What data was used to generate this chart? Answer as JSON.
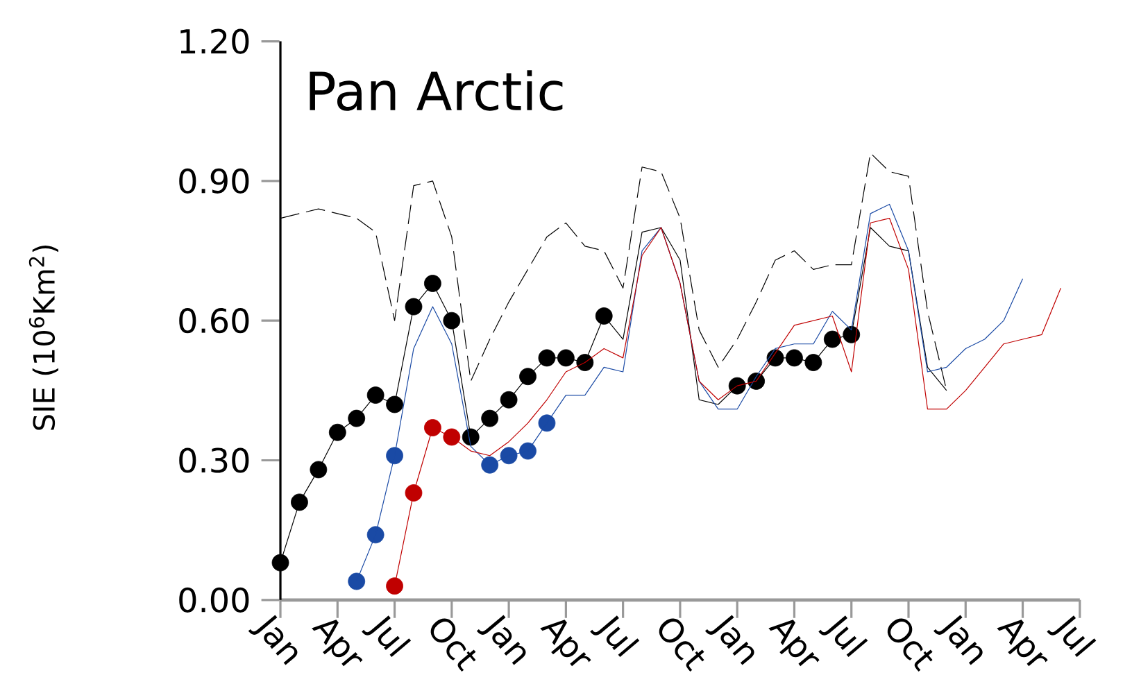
{
  "chart_data": {
    "type": "line",
    "title": "Pan Arctic",
    "ylabel": "SIE (10$^{6}$Km$^{2}$)",
    "categories": [
      "Jan",
      null,
      null,
      "Apr",
      null,
      null,
      "Jul",
      null,
      null,
      "Oct",
      null,
      null,
      "Jan",
      null,
      null,
      "Apr",
      null,
      null,
      "Jul",
      null,
      null,
      "Oct",
      null,
      null,
      "Jan",
      null,
      null,
      "Apr",
      null,
      null,
      "Jul",
      null,
      null,
      "Oct",
      null,
      null,
      "Jan",
      null,
      null,
      "Apr",
      null,
      null,
      "Jul"
    ],
    "ylim": [
      0,
      1.2
    ],
    "yticks": [
      {
        "value": 0,
        "label": "0.00"
      },
      {
        "value": 0.3,
        "label": "0.30"
      },
      {
        "value": 0.6,
        "label": "0.60"
      },
      {
        "value": 0.9,
        "label": "0.90"
      },
      {
        "value": 1.2,
        "label": "1.20"
      }
    ],
    "grid": false,
    "legend": false,
    "series": [
      {
        "color": "#000000",
        "line_style": "dashed",
        "marker": "none",
        "values": [
          0.82,
          0.83,
          0.84,
          0.83,
          0.82,
          0.79,
          0.6,
          0.89,
          0.9,
          0.78,
          0.47,
          0.56,
          0.64,
          0.71,
          0.78,
          0.81,
          0.76,
          0.75,
          0.67,
          0.93,
          0.92,
          0.82,
          0.58,
          0.5,
          0.56,
          0.64,
          0.73,
          0.75,
          0.71,
          0.72,
          0.72,
          0.96,
          0.92,
          0.91,
          0.62,
          0.45,
          null,
          null,
          null,
          null,
          null,
          null,
          null
        ]
      },
      {
        "color": "#000000",
        "line_style": "solid",
        "marker": "none",
        "values": [
          0.08,
          0.21,
          0.28,
          0.36,
          0.39,
          0.44,
          0.42,
          0.63,
          0.68,
          0.6,
          0.35,
          0.39,
          0.43,
          0.48,
          0.52,
          0.52,
          0.51,
          0.61,
          0.56,
          0.79,
          0.8,
          0.73,
          0.43,
          0.42,
          0.46,
          0.47,
          0.52,
          0.52,
          0.51,
          0.56,
          0.57,
          0.8,
          0.76,
          0.75,
          0.5,
          0.45,
          null,
          null,
          null,
          null,
          null,
          null,
          null
        ]
      },
      {
        "color": "#1a4aa5",
        "line_style": "solid",
        "marker": "none",
        "values": [
          null,
          null,
          null,
          null,
          0.04,
          0.14,
          0.31,
          0.54,
          0.63,
          0.55,
          0.33,
          0.29,
          0.31,
          0.32,
          0.38,
          0.44,
          0.44,
          0.5,
          0.49,
          0.75,
          0.8,
          0.68,
          0.47,
          0.41,
          0.41,
          0.48,
          0.54,
          0.55,
          0.55,
          0.62,
          0.58,
          0.83,
          0.85,
          0.75,
          0.49,
          0.5,
          0.54,
          0.56,
          0.6,
          0.69,
          null,
          null,
          null
        ]
      },
      {
        "color": "#c00000",
        "line_style": "solid",
        "marker": "none",
        "values": [
          null,
          null,
          null,
          null,
          null,
          null,
          0.03,
          0.23,
          0.37,
          0.35,
          0.32,
          0.31,
          0.34,
          0.38,
          0.43,
          0.49,
          0.51,
          0.54,
          0.52,
          0.74,
          0.8,
          0.68,
          0.47,
          0.43,
          0.46,
          0.47,
          0.53,
          0.59,
          0.6,
          0.61,
          0.49,
          0.81,
          0.82,
          0.71,
          0.41,
          0.41,
          0.45,
          0.5,
          0.55,
          0.56,
          0.57,
          0.67,
          null
        ]
      },
      {
        "type": "scatter",
        "color": "#000000",
        "marker": "circle",
        "values": [
          0.08,
          0.21,
          0.28,
          0.36,
          0.39,
          0.44,
          0.42,
          0.63,
          0.68,
          0.6,
          0.35,
          0.39,
          0.43,
          0.48,
          0.52,
          0.52,
          0.51,
          0.61,
          null,
          null,
          null,
          null,
          null,
          null,
          0.46,
          0.47,
          0.52,
          0.52,
          0.51,
          0.56,
          0.57,
          null,
          null,
          null,
          null,
          null,
          null,
          null,
          null,
          null,
          null,
          null,
          null
        ]
      },
      {
        "type": "scatter",
        "color": "#1a4aa5",
        "marker": "circle",
        "values": [
          null,
          null,
          null,
          null,
          0.04,
          0.14,
          0.31,
          null,
          null,
          null,
          null,
          0.29,
          0.31,
          0.32,
          0.38,
          null,
          null,
          null,
          null,
          null,
          null,
          null,
          null,
          null,
          null,
          null,
          null,
          null,
          null,
          null,
          null,
          null,
          null,
          null,
          null,
          null,
          null,
          null,
          null,
          null,
          null,
          null,
          null
        ]
      },
      {
        "type": "scatter",
        "color": "#c00000",
        "marker": "circle",
        "values": [
          null,
          null,
          null,
          null,
          null,
          null,
          0.03,
          0.23,
          0.37,
          0.35,
          null,
          null,
          null,
          null,
          null,
          null,
          null,
          null,
          null,
          null,
          null,
          null,
          null,
          null,
          null,
          null,
          null,
          null,
          null,
          null,
          null,
          null,
          null,
          null,
          null,
          null,
          null,
          null,
          null,
          null,
          null,
          null,
          null
        ]
      }
    ]
  }
}
